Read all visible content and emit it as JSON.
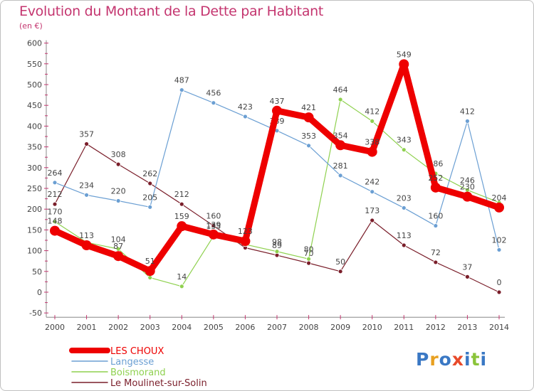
{
  "title": "Evolution du Montant de la Dette par Habitant",
  "subtitle": "(en €)",
  "brand": {
    "text": "Proxiti",
    "colors": [
      "#3a78c4",
      "#e8a020",
      "#3a78c4",
      "#e84a2a",
      "#3a78c4",
      "#8bc43a",
      "#3a78c4"
    ]
  },
  "chart_data": {
    "type": "line",
    "x": [
      "2000",
      "2001",
      "2002",
      "2003",
      "2004",
      "2005",
      "2006",
      "2007",
      "2008",
      "2009",
      "2010",
      "2011",
      "2012",
      "2013",
      "2014"
    ],
    "yticks": [
      "-50",
      "0",
      "50",
      "100",
      "150",
      "200",
      "250",
      "300",
      "350",
      "400",
      "450",
      "500",
      "550",
      "600"
    ],
    "ylim": [
      -50,
      600
    ],
    "grid": false,
    "legend_position": "bottom-left",
    "series": [
      {
        "name": "Le Moulinet-sur-Solin",
        "color": "#7a1e2a",
        "values": [
          212,
          357,
          308,
          262,
          212,
          160,
          107,
          89,
          70,
          50,
          173,
          113,
          72,
          37,
          0
        ],
        "labels": [
          "212",
          "357",
          "308",
          "262",
          "212",
          "160",
          "",
          "89",
          "70",
          "50",
          "173",
          "113",
          "72",
          "37",
          "0"
        ]
      },
      {
        "name": "Boismorand",
        "color": "#8fd14f",
        "values": [
          170,
          120,
          104,
          35,
          14,
          135,
          115,
          98,
          80,
          464,
          412,
          343,
          286,
          246,
          216
        ],
        "labels": [
          "170",
          "",
          "104",
          "",
          "14",
          "135",
          "",
          "98",
          "80",
          "464",
          "412",
          "343",
          "286",
          "246",
          ""
        ]
      },
      {
        "name": "Langesse",
        "color": "#6b9fd3",
        "values": [
          264,
          234,
          220,
          205,
          487,
          456,
          423,
          389,
          353,
          281,
          242,
          203,
          160,
          412,
          102
        ],
        "labels": [
          "264",
          "234",
          "220",
          "205",
          "487",
          "456",
          "423",
          "389",
          "353",
          "281",
          "242",
          "203",
          "160",
          "412",
          "102"
        ]
      },
      {
        "name": "LES CHOUX",
        "color": "#ee0000",
        "values": [
          148,
          113,
          87,
          51,
          159,
          139,
          123,
          437,
          421,
          354,
          338,
          549,
          252,
          230,
          204
        ],
        "labels": [
          "148",
          "113",
          "87",
          "51",
          "159",
          "139",
          "123",
          "437",
          "421",
          "354",
          "338",
          "549",
          "252",
          "230",
          "204"
        ]
      }
    ],
    "legend": [
      "LES CHOUX",
      "Langesse",
      "Boismorand",
      "Le Moulinet-sur-Solin"
    ]
  }
}
